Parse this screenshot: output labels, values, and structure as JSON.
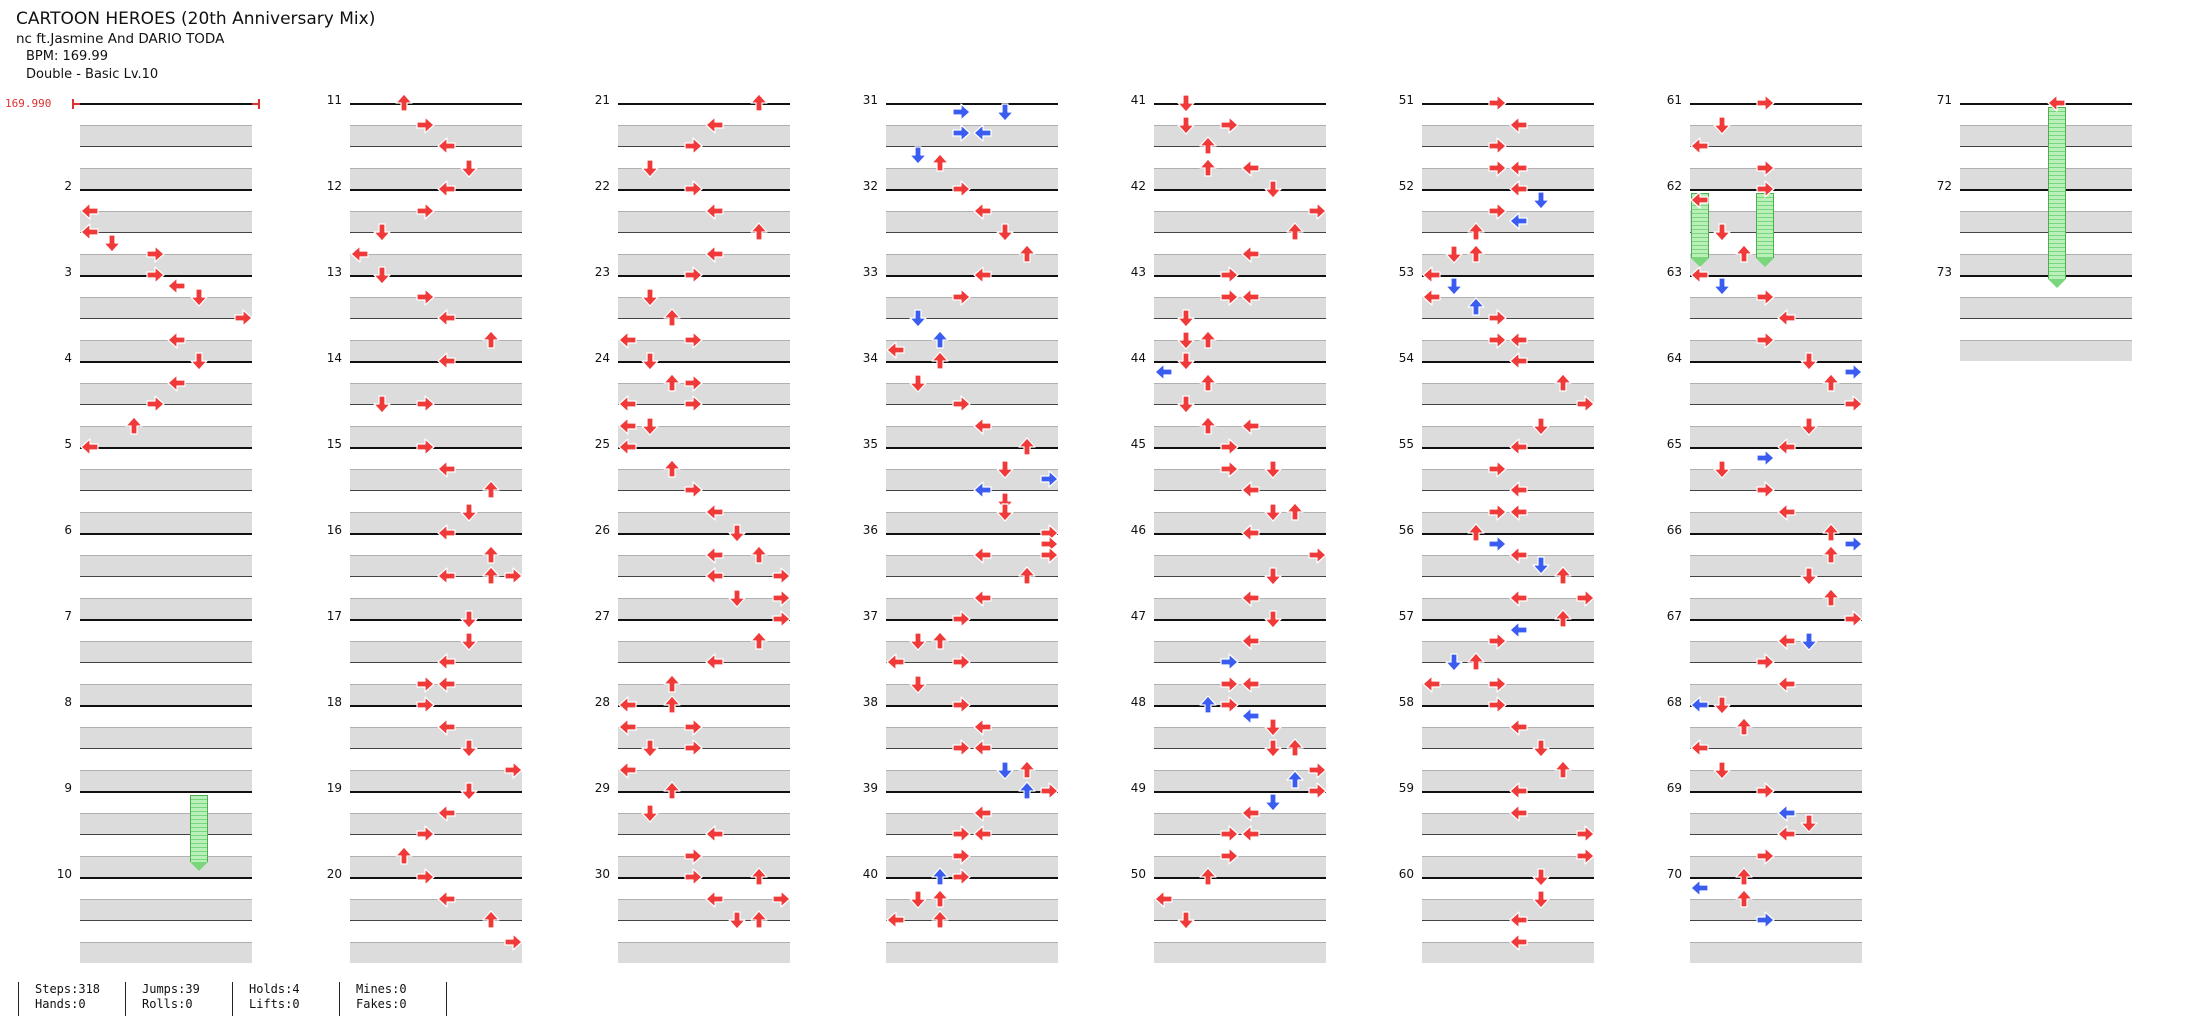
{
  "header": {
    "title": "CARTOON HEROES (20th Anniversary Mix)",
    "artist": "nc ft.Jasmine And DARIO TODA",
    "bpm_line": "BPM: 169.99",
    "difficulty_line": "Double - Basic  Lv.10"
  },
  "bpm_marker": {
    "label": "169.990",
    "color": "#e03030"
  },
  "colors": {
    "red": "#f03a3a",
    "blue": "#3a5cf0",
    "hold": "#7ad67a",
    "band": "#dcdcdc"
  },
  "columns": [
    {
      "measures": [
        "",
        "2",
        "3",
        "4",
        "5",
        "6",
        "7",
        "8",
        "9",
        "10"
      ]
    },
    {
      "measures": [
        "11",
        "12",
        "13",
        "14",
        "15",
        "16",
        "17",
        "18",
        "19",
        "20"
      ]
    },
    {
      "measures": [
        "21",
        "22",
        "23",
        "24",
        "25",
        "26",
        "27",
        "28",
        "29",
        "30"
      ]
    },
    {
      "measures": [
        "31",
        "32",
        "33",
        "34",
        "35",
        "36",
        "37",
        "38",
        "39",
        "40"
      ]
    },
    {
      "measures": [
        "41",
        "42",
        "43",
        "44",
        "45",
        "46",
        "47",
        "48",
        "49",
        "50"
      ]
    },
    {
      "measures": [
        "51",
        "52",
        "53",
        "54",
        "55",
        "56",
        "57",
        "58",
        "59",
        "60"
      ]
    },
    {
      "measures": [
        "61",
        "62",
        "63",
        "64",
        "65",
        "66",
        "67",
        "68",
        "69",
        "70"
      ]
    },
    {
      "measures": [
        "71",
        "72",
        "73"
      ]
    }
  ],
  "notes": [
    [
      [
        5,
        0,
        "L"
      ],
      [
        6,
        0,
        "L"
      ],
      [
        6.5,
        1,
        "D"
      ],
      [
        7,
        3,
        "R"
      ],
      [
        8,
        3,
        "R"
      ],
      [
        8.5,
        4,
        "L"
      ],
      [
        9,
        5,
        "D"
      ],
      [
        10,
        7,
        "R"
      ],
      [
        11,
        4,
        "L"
      ],
      [
        12,
        5,
        "D"
      ],
      [
        13,
        4,
        "L"
      ],
      [
        14,
        3,
        "R"
      ],
      [
        15,
        2,
        "U"
      ],
      [
        16,
        0,
        "L"
      ]
    ],
    [
      [
        0,
        2,
        "U"
      ],
      [
        1,
        3,
        "R"
      ],
      [
        2,
        4,
        "L"
      ],
      [
        3,
        5,
        "D"
      ],
      [
        4,
        4,
        "L"
      ],
      [
        5,
        3,
        "R"
      ],
      [
        6,
        1,
        "D"
      ],
      [
        7,
        0,
        "L"
      ],
      [
        8,
        1,
        "D"
      ],
      [
        9,
        3,
        "R"
      ],
      [
        10,
        4,
        "L"
      ],
      [
        11,
        6,
        "U"
      ],
      [
        12,
        4,
        "L"
      ],
      [
        14,
        3,
        "R"
      ],
      [
        14,
        1,
        "D"
      ],
      [
        16,
        3,
        "R"
      ],
      [
        17,
        4,
        "L"
      ],
      [
        18,
        6,
        "U"
      ],
      [
        19,
        5,
        "D"
      ],
      [
        20,
        4,
        "L"
      ],
      [
        21,
        6,
        "U"
      ],
      [
        22,
        6,
        "U"
      ],
      [
        22,
        4,
        "L"
      ],
      [
        22,
        7,
        "R"
      ],
      [
        24,
        5,
        "D"
      ],
      [
        25,
        5,
        "D"
      ],
      [
        26,
        4,
        "L"
      ],
      [
        27,
        3,
        "R"
      ],
      [
        27,
        4,
        "L"
      ],
      [
        28,
        3,
        "R"
      ],
      [
        29,
        4,
        "L"
      ],
      [
        30,
        5,
        "D"
      ],
      [
        31,
        7,
        "R"
      ],
      [
        32,
        5,
        "D"
      ],
      [
        33,
        4,
        "L"
      ],
      [
        34,
        3,
        "R"
      ],
      [
        35,
        2,
        "U"
      ],
      [
        36,
        3,
        "R"
      ],
      [
        37,
        4,
        "L"
      ],
      [
        38,
        6,
        "U"
      ],
      [
        39,
        7,
        "R"
      ]
    ],
    [
      [
        0,
        6,
        "U"
      ],
      [
        1,
        4,
        "L"
      ],
      [
        2,
        3,
        "R"
      ],
      [
        3,
        1,
        "D"
      ],
      [
        4,
        3,
        "R"
      ],
      [
        5,
        4,
        "L"
      ],
      [
        6,
        6,
        "U"
      ],
      [
        7,
        4,
        "L"
      ],
      [
        8,
        3,
        "R"
      ],
      [
        9,
        1,
        "D"
      ],
      [
        10,
        2,
        "U"
      ],
      [
        11,
        0,
        "L"
      ],
      [
        11,
        3,
        "R"
      ],
      [
        12,
        1,
        "D"
      ],
      [
        13,
        2,
        "U"
      ],
      [
        13,
        3,
        "R"
      ],
      [
        14,
        0,
        "L"
      ],
      [
        14,
        3,
        "R"
      ],
      [
        15,
        0,
        "L"
      ],
      [
        15,
        1,
        "D"
      ],
      [
        16,
        0,
        "L"
      ],
      [
        17,
        2,
        "U"
      ],
      [
        18,
        3,
        "R"
      ],
      [
        19,
        4,
        "L"
      ],
      [
        20,
        5,
        "D"
      ],
      [
        21,
        4,
        "L"
      ],
      [
        21,
        6,
        "U"
      ],
      [
        22,
        4,
        "L"
      ],
      [
        22,
        7,
        "R"
      ],
      [
        23,
        5,
        "D"
      ],
      [
        23,
        7,
        "R"
      ],
      [
        24,
        7,
        "R"
      ],
      [
        25,
        6,
        "U"
      ],
      [
        26,
        4,
        "L"
      ],
      [
        27,
        2,
        "U"
      ],
      [
        28,
        0,
        "L"
      ],
      [
        28,
        2,
        "U"
      ],
      [
        29,
        0,
        "L"
      ],
      [
        29,
        3,
        "R"
      ],
      [
        30,
        1,
        "D"
      ],
      [
        30,
        3,
        "R"
      ],
      [
        31,
        0,
        "L"
      ],
      [
        32,
        2,
        "U"
      ],
      [
        33,
        1,
        "D"
      ],
      [
        34,
        4,
        "L"
      ],
      [
        35,
        3,
        "R"
      ],
      [
        36,
        3,
        "R"
      ],
      [
        36,
        6,
        "U"
      ],
      [
        37,
        4,
        "L"
      ],
      [
        37,
        7,
        "R"
      ],
      [
        38,
        6,
        "U"
      ],
      [
        38,
        5,
        "D"
      ]
    ],
    [
      [
        0.4,
        3,
        "bR"
      ],
      [
        0.4,
        5,
        "bD"
      ],
      [
        1.4,
        3,
        "bR"
      ],
      [
        1.4,
        4,
        "bL"
      ],
      [
        2.4,
        1,
        "bD"
      ],
      [
        2.8,
        2,
        "U"
      ],
      [
        4,
        3,
        "R"
      ],
      [
        5,
        4,
        "L"
      ],
      [
        6,
        5,
        "D"
      ],
      [
        7,
        6,
        "U"
      ],
      [
        8,
        4,
        "L"
      ],
      [
        9,
        3,
        "R"
      ],
      [
        10,
        1,
        "bD"
      ],
      [
        11,
        2,
        "bU"
      ],
      [
        11.5,
        0,
        "L"
      ],
      [
        12,
        2,
        "U"
      ],
      [
        13,
        1,
        "D"
      ],
      [
        14,
        3,
        "R"
      ],
      [
        15,
        4,
        "L"
      ],
      [
        16,
        6,
        "U"
      ],
      [
        17,
        5,
        "D"
      ],
      [
        17.5,
        7,
        "bR"
      ],
      [
        18,
        4,
        "bL"
      ],
      [
        18.5,
        5,
        "D"
      ],
      [
        19,
        5,
        "D"
      ],
      [
        20,
        7,
        "R"
      ],
      [
        20.5,
        7,
        "R"
      ],
      [
        21,
        4,
        "L"
      ],
      [
        21,
        7,
        "R"
      ],
      [
        22,
        6,
        "U"
      ],
      [
        23,
        4,
        "L"
      ],
      [
        24,
        3,
        "R"
      ],
      [
        25,
        1,
        "D"
      ],
      [
        25,
        2,
        "U"
      ],
      [
        26,
        0,
        "L"
      ],
      [
        26,
        3,
        "R"
      ],
      [
        27,
        1,
        "D"
      ],
      [
        28,
        3,
        "R"
      ],
      [
        29,
        4,
        "L"
      ],
      [
        30,
        3,
        "R"
      ],
      [
        30,
        4,
        "L"
      ],
      [
        31,
        5,
        "bD"
      ],
      [
        31,
        6,
        "U"
      ],
      [
        32,
        6,
        "bU"
      ],
      [
        32,
        7,
        "R"
      ],
      [
        33,
        4,
        "L"
      ],
      [
        34,
        3,
        "R"
      ],
      [
        34,
        4,
        "L"
      ],
      [
        35,
        3,
        "R"
      ],
      [
        36,
        2,
        "bU"
      ],
      [
        36,
        3,
        "R"
      ],
      [
        37,
        1,
        "D"
      ],
      [
        37,
        2,
        "U"
      ],
      [
        38,
        0,
        "L"
      ],
      [
        38,
        2,
        "U"
      ]
    ],
    [
      [
        0,
        1,
        "D"
      ],
      [
        1,
        1,
        "D"
      ],
      [
        1,
        3,
        "R"
      ],
      [
        2,
        2,
        "U"
      ],
      [
        3,
        2,
        "U"
      ],
      [
        3,
        4,
        "L"
      ],
      [
        4,
        5,
        "D"
      ],
      [
        5,
        7,
        "R"
      ],
      [
        6,
        6,
        "U"
      ],
      [
        7,
        4,
        "L"
      ],
      [
        8,
        3,
        "R"
      ],
      [
        9,
        3,
        "R"
      ],
      [
        9,
        4,
        "L"
      ],
      [
        10,
        1,
        "D"
      ],
      [
        11,
        1,
        "D"
      ],
      [
        11,
        2,
        "U"
      ],
      [
        12,
        1,
        "D"
      ],
      [
        12.5,
        0,
        "bL"
      ],
      [
        13,
        2,
        "U"
      ],
      [
        14,
        1,
        "D"
      ],
      [
        15,
        2,
        "U"
      ],
      [
        15,
        4,
        "L"
      ],
      [
        16,
        3,
        "R"
      ],
      [
        17,
        3,
        "R"
      ],
      [
        17,
        5,
        "D"
      ],
      [
        18,
        4,
        "L"
      ],
      [
        19,
        5,
        "D"
      ],
      [
        19,
        6,
        "U"
      ],
      [
        20,
        4,
        "L"
      ],
      [
        21,
        7,
        "R"
      ],
      [
        22,
        5,
        "D"
      ],
      [
        23,
        4,
        "L"
      ],
      [
        24,
        5,
        "D"
      ],
      [
        25,
        4,
        "L"
      ],
      [
        26,
        3,
        "bR"
      ],
      [
        27,
        3,
        "R"
      ],
      [
        27,
        4,
        "L"
      ],
      [
        28,
        2,
        "bU"
      ],
      [
        28,
        3,
        "R"
      ],
      [
        28.5,
        4,
        "bL"
      ],
      [
        29,
        5,
        "D"
      ],
      [
        30,
        5,
        "D"
      ],
      [
        30,
        6,
        "U"
      ],
      [
        31,
        7,
        "R"
      ],
      [
        31.5,
        6,
        "bU"
      ],
      [
        32,
        7,
        "R"
      ],
      [
        32.5,
        5,
        "bD"
      ],
      [
        33,
        4,
        "L"
      ],
      [
        34,
        3,
        "R"
      ],
      [
        34,
        4,
        "L"
      ],
      [
        35,
        3,
        "R"
      ],
      [
        36,
        2,
        "U"
      ],
      [
        37,
        0,
        "L"
      ],
      [
        38,
        1,
        "D"
      ]
    ],
    [
      [
        0,
        3,
        "R"
      ],
      [
        1,
        4,
        "L"
      ],
      [
        2,
        3,
        "R"
      ],
      [
        3,
        3,
        "R"
      ],
      [
        3,
        4,
        "L"
      ],
      [
        4,
        4,
        "L"
      ],
      [
        4.5,
        5,
        "bD"
      ],
      [
        5,
        3,
        "R"
      ],
      [
        5.5,
        4,
        "bL"
      ],
      [
        6,
        2,
        "U"
      ],
      [
        7,
        1,
        "D"
      ],
      [
        7,
        2,
        "U"
      ],
      [
        8,
        0,
        "L"
      ],
      [
        8.5,
        1,
        "bD"
      ],
      [
        9,
        0,
        "L"
      ],
      [
        9.5,
        2,
        "bU"
      ],
      [
        10,
        3,
        "R"
      ],
      [
        11,
        3,
        "R"
      ],
      [
        11,
        4,
        "L"
      ],
      [
        12,
        4,
        "L"
      ],
      [
        13,
        6,
        "U"
      ],
      [
        14,
        7,
        "R"
      ],
      [
        15,
        5,
        "D"
      ],
      [
        16,
        4,
        "L"
      ],
      [
        17,
        3,
        "R"
      ],
      [
        18,
        4,
        "L"
      ],
      [
        19,
        3,
        "R"
      ],
      [
        19,
        4,
        "L"
      ],
      [
        20,
        2,
        "U"
      ],
      [
        20.5,
        3,
        "bR"
      ],
      [
        21,
        4,
        "L"
      ],
      [
        21.5,
        5,
        "bD"
      ],
      [
        22,
        6,
        "U"
      ],
      [
        23,
        4,
        "L"
      ],
      [
        23,
        7,
        "R"
      ],
      [
        24,
        6,
        "U"
      ],
      [
        24.5,
        4,
        "bL"
      ],
      [
        25,
        3,
        "R"
      ],
      [
        26,
        1,
        "bD"
      ],
      [
        26,
        2,
        "U"
      ],
      [
        27,
        0,
        "L"
      ],
      [
        27,
        3,
        "R"
      ],
      [
        28,
        3,
        "R"
      ],
      [
        29,
        4,
        "L"
      ],
      [
        30,
        5,
        "D"
      ],
      [
        31,
        6,
        "U"
      ],
      [
        32,
        4,
        "L"
      ],
      [
        33,
        4,
        "L"
      ],
      [
        34,
        7,
        "R"
      ],
      [
        35,
        7,
        "R"
      ],
      [
        36,
        5,
        "D"
      ],
      [
        37,
        5,
        "D"
      ],
      [
        38,
        4,
        "L"
      ],
      [
        39,
        4,
        "L"
      ]
    ],
    [
      [
        0,
        3,
        "R"
      ],
      [
        1,
        1,
        "D"
      ],
      [
        2,
        0,
        "L"
      ],
      [
        3,
        3,
        "R"
      ],
      [
        4,
        3,
        "R"
      ],
      [
        4.5,
        0,
        "L"
      ],
      [
        6,
        1,
        "D"
      ],
      [
        7,
        2,
        "U"
      ],
      [
        8,
        0,
        "L"
      ],
      [
        8.5,
        1,
        "bD"
      ],
      [
        9,
        3,
        "R"
      ],
      [
        10,
        4,
        "L"
      ],
      [
        11,
        3,
        "R"
      ],
      [
        12,
        5,
        "D"
      ],
      [
        12.5,
        7,
        "bR"
      ],
      [
        13,
        6,
        "U"
      ],
      [
        14,
        7,
        "R"
      ],
      [
        15,
        5,
        "D"
      ],
      [
        16,
        4,
        "L"
      ],
      [
        16.5,
        3,
        "bR"
      ],
      [
        17,
        1,
        "D"
      ],
      [
        18,
        3,
        "R"
      ],
      [
        19,
        4,
        "L"
      ],
      [
        20,
        6,
        "U"
      ],
      [
        20.5,
        7,
        "bR"
      ],
      [
        21,
        6,
        "U"
      ],
      [
        22,
        5,
        "D"
      ],
      [
        23,
        6,
        "U"
      ],
      [
        24,
        7,
        "R"
      ],
      [
        25,
        4,
        "L"
      ],
      [
        25,
        5,
        "bD"
      ],
      [
        26,
        3,
        "R"
      ],
      [
        27,
        4,
        "L"
      ],
      [
        28,
        0,
        "bL"
      ],
      [
        28,
        1,
        "D"
      ],
      [
        29,
        2,
        "U"
      ],
      [
        30,
        0,
        "L"
      ],
      [
        31,
        1,
        "D"
      ],
      [
        32,
        3,
        "R"
      ],
      [
        33,
        4,
        "bL"
      ],
      [
        33.5,
        5,
        "D"
      ],
      [
        34,
        4,
        "L"
      ],
      [
        35,
        3,
        "R"
      ],
      [
        36,
        2,
        "U"
      ],
      [
        36.5,
        0,
        "bL"
      ],
      [
        37,
        2,
        "U"
      ],
      [
        38,
        3,
        "bR"
      ]
    ],
    [
      [
        0,
        4,
        "L"
      ]
    ]
  ],
  "holds": [
    {
      "col": 0,
      "lane": 5,
      "start": 32.2,
      "end": 35.3
    },
    {
      "col": 6,
      "lane": 0,
      "start": 4.2,
      "end": 7.2
    },
    {
      "col": 6,
      "lane": 3,
      "start": 4.2,
      "end": 7.2
    },
    {
      "col": 7,
      "lane": 4,
      "start": 0.2,
      "end": 8.2
    }
  ],
  "stats": [
    {
      "a": "Steps:318",
      "b": "Hands:0"
    },
    {
      "a": "Jumps:39",
      "b": "Rolls:0"
    },
    {
      "a": "Holds:4",
      "b": "Lifts:0"
    },
    {
      "a": "Mines:0",
      "b": "Fakes:0"
    }
  ]
}
